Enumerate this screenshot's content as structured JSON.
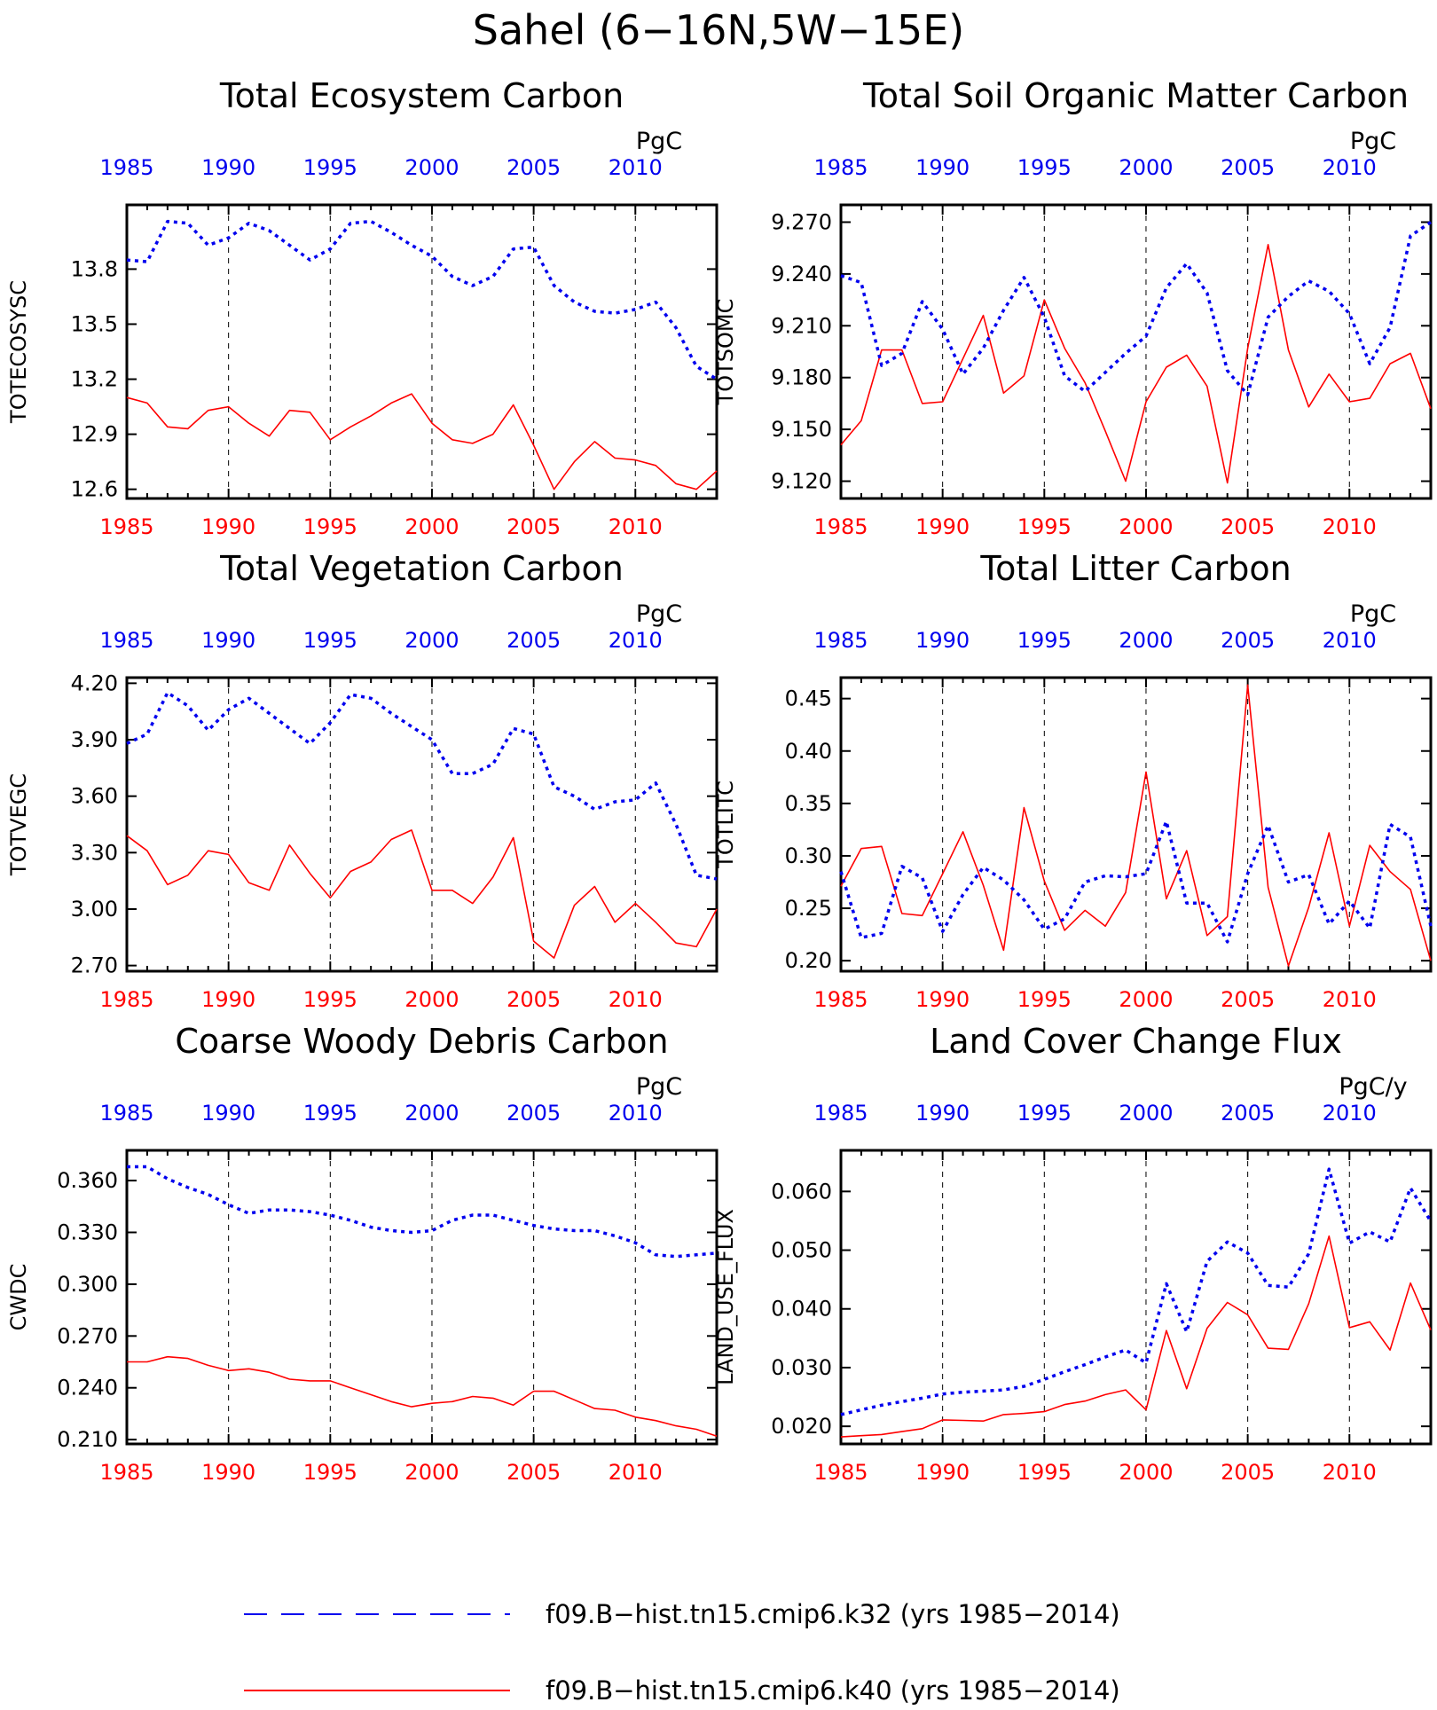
{
  "figure": {
    "title": "Sahel (6−16N,5W−15E)"
  },
  "colors": {
    "k32": "#0000ee",
    "k40": "#ff0000",
    "axis": "#000000"
  },
  "legend": {
    "items": [
      {
        "label": "f09.B−hist.tn15.cmip6.k32 (yrs 1985−2014)",
        "style": "dashed",
        "color": "#0000ee"
      },
      {
        "label": "f09.B−hist.tn15.cmip6.k40 (yrs 1985−2014)",
        "style": "solid",
        "color": "#ff0000"
      }
    ]
  },
  "chart_data": [
    {
      "type": "line",
      "title": "Total Ecosystem Carbon",
      "ylabel": "TOTECOSYSC",
      "units": "PgC",
      "xlim": [
        1985,
        2014
      ],
      "xticks": [
        1985,
        1990,
        1995,
        2000,
        2005,
        2010
      ],
      "ylim": [
        12.55,
        14.15
      ],
      "yticks": [
        "12.6",
        "12.9",
        "13.2",
        "13.5",
        "13.8"
      ],
      "grid": "vertical dashed lines at 1990, 1995, 2000, 2005, 2010",
      "x": [
        1985,
        1986,
        1987,
        1988,
        1989,
        1990,
        1991,
        1992,
        1993,
        1994,
        1995,
        1996,
        1997,
        1998,
        1999,
        2000,
        2001,
        2002,
        2003,
        2004,
        2005,
        2006,
        2007,
        2008,
        2009,
        2010,
        2011,
        2012,
        2013,
        2014
      ],
      "series": [
        {
          "name": "f09.B−hist.tn15.cmip6.k32 (yrs 1985−2014)",
          "color": "#0000ee",
          "style": "dashed",
          "values": [
            13.85,
            13.84,
            14.06,
            14.05,
            13.93,
            13.97,
            14.05,
            14.01,
            13.93,
            13.85,
            13.91,
            14.05,
            14.06,
            14.0,
            13.93,
            13.87,
            13.76,
            13.71,
            13.76,
            13.91,
            13.92,
            13.71,
            13.62,
            13.57,
            13.56,
            13.58,
            13.62,
            13.48,
            13.27,
            13.2
          ]
        },
        {
          "name": "f09.B−hist.tn15.cmip6.k40 (yrs 1985−2014)",
          "color": "#ff0000",
          "style": "solid",
          "values": [
            13.1,
            13.07,
            12.94,
            12.93,
            13.03,
            13.05,
            12.96,
            12.89,
            13.03,
            13.02,
            12.87,
            12.94,
            13.0,
            13.07,
            13.12,
            12.96,
            12.87,
            12.85,
            12.9,
            13.06,
            12.84,
            12.6,
            12.75,
            12.86,
            12.77,
            12.76,
            12.73,
            12.63,
            12.6,
            12.7
          ]
        }
      ]
    },
    {
      "type": "line",
      "title": "Total Soil Organic Matter Carbon",
      "ylabel": "TOTSOMC",
      "units": "PgC",
      "xlim": [
        1985,
        2014
      ],
      "xticks": [
        1985,
        1990,
        1995,
        2000,
        2005,
        2010
      ],
      "ylim": [
        9.11,
        9.28
      ],
      "yticks": [
        "9.120",
        "9.150",
        "9.180",
        "9.210",
        "9.240",
        "9.270"
      ],
      "grid": "vertical dashed lines at 1990, 1995, 2000, 2005, 2010",
      "x": [
        1985,
        1986,
        1987,
        1988,
        1989,
        1990,
        1991,
        1992,
        1993,
        1994,
        1995,
        1996,
        1997,
        1998,
        1999,
        2000,
        2001,
        2002,
        2003,
        2004,
        2005,
        2006,
        2007,
        2008,
        2009,
        2010,
        2011,
        2012,
        2013,
        2014
      ],
      "series": [
        {
          "name": "f09.B−hist.tn15.cmip6.k32 (yrs 1985−2014)",
          "color": "#0000ee",
          "style": "dashed",
          "values": [
            9.239,
            9.235,
            9.187,
            9.194,
            9.224,
            9.208,
            9.182,
            9.197,
            9.219,
            9.238,
            9.215,
            9.181,
            9.172,
            9.183,
            9.194,
            9.204,
            9.232,
            9.246,
            9.229,
            9.184,
            9.17,
            9.215,
            9.227,
            9.236,
            9.23,
            9.217,
            9.188,
            9.209,
            9.262,
            9.27
          ]
        },
        {
          "name": "f09.B−hist.tn15.cmip6.k40 (yrs 1985−2014)",
          "color": "#ff0000",
          "style": "solid",
          "values": [
            9.141,
            9.155,
            9.196,
            9.196,
            9.165,
            9.166,
            9.191,
            9.216,
            9.171,
            9.181,
            9.225,
            9.197,
            9.177,
            9.149,
            9.12,
            9.166,
            9.186,
            9.193,
            9.175,
            9.119,
            9.197,
            9.257,
            9.196,
            9.163,
            9.182,
            9.166,
            9.168,
            9.188,
            9.194,
            9.162
          ]
        }
      ]
    },
    {
      "type": "line",
      "title": "Total Vegetation Carbon",
      "ylabel": "TOTVEGC",
      "units": "PgC",
      "xlim": [
        1985,
        2014
      ],
      "xticks": [
        1985,
        1990,
        1995,
        2000,
        2005,
        2010
      ],
      "ylim": [
        2.67,
        4.23
      ],
      "yticks": [
        "2.70",
        "3.00",
        "3.30",
        "3.60",
        "3.90",
        "4.20"
      ],
      "grid": "vertical dashed lines at 1990, 1995, 2000, 2005, 2010",
      "x": [
        1985,
        1986,
        1987,
        1988,
        1989,
        1990,
        1991,
        1992,
        1993,
        1994,
        1995,
        1996,
        1997,
        1998,
        1999,
        2000,
        2001,
        2002,
        2003,
        2004,
        2005,
        2006,
        2007,
        2008,
        2009,
        2010,
        2011,
        2012,
        2013,
        2014
      ],
      "series": [
        {
          "name": "f09.B−hist.tn15.cmip6.k32 (yrs 1985−2014)",
          "color": "#0000ee",
          "style": "dashed",
          "values": [
            3.88,
            3.93,
            4.15,
            4.08,
            3.95,
            4.06,
            4.12,
            4.04,
            3.96,
            3.88,
            3.99,
            4.14,
            4.12,
            4.04,
            3.97,
            3.9,
            3.72,
            3.72,
            3.77,
            3.96,
            3.93,
            3.65,
            3.6,
            3.53,
            3.57,
            3.58,
            3.67,
            3.45,
            3.18,
            3.16
          ]
        },
        {
          "name": "f09.B−hist.tn15.cmip6.k40 (yrs 1985−2014)",
          "color": "#ff0000",
          "style": "solid",
          "values": [
            3.39,
            3.31,
            3.13,
            3.18,
            3.31,
            3.29,
            3.14,
            3.1,
            3.34,
            3.19,
            3.06,
            3.2,
            3.25,
            3.37,
            3.42,
            3.1,
            3.1,
            3.03,
            3.17,
            3.38,
            2.83,
            2.74,
            3.02,
            3.12,
            2.93,
            3.03,
            2.93,
            2.82,
            2.8,
            3.0
          ]
        }
      ]
    },
    {
      "type": "line",
      "title": "Total Litter Carbon",
      "ylabel": "TOTLITC",
      "units": "PgC",
      "xlim": [
        1985,
        2014
      ],
      "xticks": [
        1985,
        1990,
        1995,
        2000,
        2005,
        2010
      ],
      "ylim": [
        0.19,
        0.47
      ],
      "yticks": [
        "0.20",
        "0.25",
        "0.30",
        "0.35",
        "0.40",
        "0.45"
      ],
      "grid": "vertical dashed lines at 1990, 1995, 2000, 2005, 2010",
      "x": [
        1985,
        1986,
        1987,
        1988,
        1989,
        1990,
        1991,
        1992,
        1993,
        1994,
        1995,
        1996,
        1997,
        1998,
        1999,
        2000,
        2001,
        2002,
        2003,
        2004,
        2005,
        2006,
        2007,
        2008,
        2009,
        2010,
        2011,
        2012,
        2013,
        2014
      ],
      "series": [
        {
          "name": "f09.B−hist.tn15.cmip6.k32 (yrs 1985−2014)",
          "color": "#0000ee",
          "style": "dashed",
          "values": [
            0.285,
            0.222,
            0.226,
            0.29,
            0.279,
            0.228,
            0.263,
            0.289,
            0.277,
            0.258,
            0.23,
            0.24,
            0.275,
            0.281,
            0.28,
            0.283,
            0.333,
            0.255,
            0.255,
            0.218,
            0.283,
            0.329,
            0.275,
            0.282,
            0.235,
            0.257,
            0.231,
            0.33,
            0.318,
            0.233
          ]
        },
        {
          "name": "f09.B−hist.tn15.cmip6.k40 (yrs 1985−2014)",
          "color": "#ff0000",
          "style": "solid",
          "values": [
            0.271,
            0.307,
            0.309,
            0.245,
            0.243,
            0.283,
            0.323,
            0.272,
            0.21,
            0.346,
            0.276,
            0.229,
            0.248,
            0.233,
            0.265,
            0.38,
            0.259,
            0.305,
            0.224,
            0.242,
            0.463,
            0.27,
            0.195,
            0.251,
            0.322,
            0.233,
            0.31,
            0.285,
            0.268,
            0.2
          ]
        }
      ]
    },
    {
      "type": "line",
      "title": "Coarse Woody Debris Carbon",
      "ylabel": "CWDC",
      "units": "PgC",
      "xlim": [
        1985,
        2014
      ],
      "xticks": [
        1985,
        1990,
        1995,
        2000,
        2005,
        2010
      ],
      "ylim": [
        0.2075,
        0.3775
      ],
      "yticks": [
        "0.210",
        "0.240",
        "0.270",
        "0.300",
        "0.330",
        "0.360"
      ],
      "grid": "vertical dashed lines at 1990, 1995, 2000, 2005, 2010",
      "x": [
        1985,
        1986,
        1987,
        1988,
        1989,
        1990,
        1991,
        1992,
        1993,
        1994,
        1995,
        1996,
        1997,
        1998,
        1999,
        2000,
        2001,
        2002,
        2003,
        2004,
        2005,
        2006,
        2007,
        2008,
        2009,
        2010,
        2011,
        2012,
        2013,
        2014
      ],
      "series": [
        {
          "name": "f09.B−hist.tn15.cmip6.k32 (yrs 1985−2014)",
          "color": "#0000ee",
          "style": "dashed",
          "values": [
            0.368,
            0.368,
            0.361,
            0.356,
            0.352,
            0.346,
            0.341,
            0.343,
            0.343,
            0.342,
            0.34,
            0.337,
            0.333,
            0.331,
            0.33,
            0.331,
            0.337,
            0.34,
            0.34,
            0.337,
            0.334,
            0.332,
            0.331,
            0.331,
            0.328,
            0.324,
            0.317,
            0.316,
            0.317,
            0.318
          ]
        },
        {
          "name": "f09.B−hist.tn15.cmip6.k40 (yrs 1985−2014)",
          "color": "#ff0000",
          "style": "solid",
          "values": [
            0.255,
            0.255,
            0.258,
            0.257,
            0.253,
            0.25,
            0.251,
            0.249,
            0.245,
            0.244,
            0.244,
            0.24,
            0.236,
            0.232,
            0.229,
            0.231,
            0.232,
            0.235,
            0.234,
            0.23,
            0.238,
            0.238,
            0.233,
            0.228,
            0.227,
            0.223,
            0.221,
            0.218,
            0.216,
            0.212
          ]
        }
      ]
    },
    {
      "type": "line",
      "title": "Land Cover Change Flux",
      "ylabel": "LAND_USE_FLUX",
      "units": "PgC/y",
      "xlim": [
        1985,
        2014
      ],
      "xticks": [
        1985,
        1990,
        1995,
        2000,
        2005,
        2010
      ],
      "ylim": [
        0.017,
        0.067
      ],
      "yticks": [
        "0.020",
        "0.030",
        "0.040",
        "0.050",
        "0.060"
      ],
      "grid": "vertical dashed lines at 1990, 1995, 2000, 2005, 2010",
      "x": [
        1985,
        1986,
        1987,
        1988,
        1989,
        1990,
        1991,
        1992,
        1993,
        1994,
        1995,
        1996,
        1997,
        1998,
        1999,
        2000,
        2001,
        2002,
        2003,
        2004,
        2005,
        2006,
        2007,
        2008,
        2009,
        2010,
        2011,
        2012,
        2013,
        2014
      ],
      "series": [
        {
          "name": "f09.B−hist.tn15.cmip6.k32 (yrs 1985−2014)",
          "color": "#0000ee",
          "style": "dashed",
          "values": [
            0.022,
            0.0228,
            0.0236,
            0.0242,
            0.0248,
            0.0255,
            0.0258,
            0.026,
            0.0262,
            0.0268,
            0.028,
            0.0293,
            0.0305,
            0.0318,
            0.033,
            0.0308,
            0.0443,
            0.0361,
            0.0481,
            0.0514,
            0.0495,
            0.044,
            0.0437,
            0.0494,
            0.0638,
            0.0512,
            0.0531,
            0.0514,
            0.0606,
            0.0549
          ]
        },
        {
          "name": "f09.B−hist.tn15.cmip6.k40 (yrs 1985−2014)",
          "color": "#ff0000",
          "style": "solid",
          "values": [
            0.0182,
            0.0184,
            0.0186,
            0.0191,
            0.0196,
            0.0211,
            0.021,
            0.0209,
            0.022,
            0.0222,
            0.0225,
            0.0237,
            0.0243,
            0.0254,
            0.0262,
            0.0228,
            0.0363,
            0.0264,
            0.0367,
            0.0411,
            0.039,
            0.0333,
            0.0331,
            0.0409,
            0.0524,
            0.0368,
            0.0378,
            0.033,
            0.0444,
            0.0364
          ]
        }
      ]
    }
  ]
}
